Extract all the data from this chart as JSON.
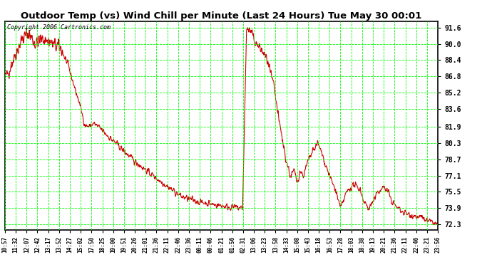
{
  "title": "Outdoor Temp (vs) Wind Chill per Minute (Last 24 Hours) Tue May 30 00:01",
  "copyright": "Copyright 2006 Cartronics.com",
  "background_color": "#ffffff",
  "plot_bg_color": "#ffffff",
  "grid_color": "#00ff00",
  "line_color": "#cc0000",
  "yticks": [
    72.3,
    73.9,
    75.5,
    77.1,
    78.7,
    80.3,
    81.9,
    83.6,
    85.2,
    86.8,
    88.4,
    90.0,
    91.6
  ],
  "ylim": [
    71.8,
    92.2
  ],
  "xtick_labels": [
    "10:57",
    "11:32",
    "12:07",
    "12:42",
    "13:17",
    "13:52",
    "14:27",
    "15:02",
    "17:50",
    "18:25",
    "19:00",
    "19:51",
    "20:26",
    "21:01",
    "21:36",
    "22:11",
    "22:46",
    "23:36",
    "00:11",
    "00:46",
    "01:21",
    "01:56",
    "02:31",
    "13:06",
    "13:23",
    "13:58",
    "14:33",
    "15:08",
    "15:43",
    "16:18",
    "16:53",
    "17:28",
    "18:03",
    "18:38",
    "19:13",
    "20:21",
    "21:36",
    "22:11",
    "22:46",
    "23:21",
    "23:56"
  ],
  "num_points": 1440,
  "title_fontsize": 10
}
